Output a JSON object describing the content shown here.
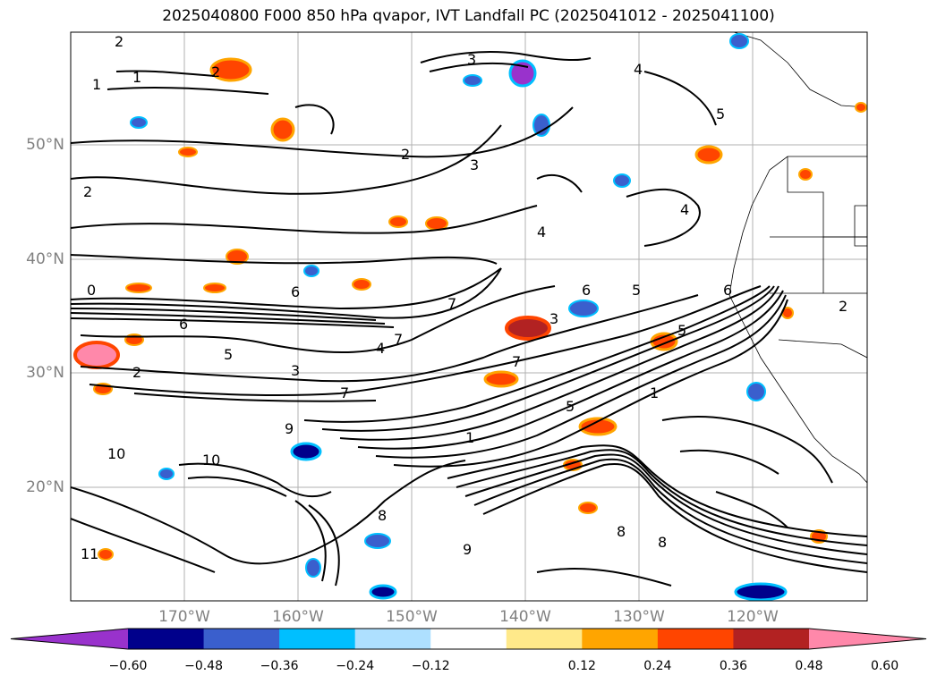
{
  "title": "2025040800 F000 850 hPa qvapor, IVT Landfall PC (2025041012 - 2025041100)",
  "map": {
    "lat_labels": [
      "50°N",
      "40°N",
      "30°N",
      "20°N"
    ],
    "lon_labels": [
      "170°W",
      "160°W",
      "150°W",
      "140°W",
      "130°W",
      "120°W"
    ],
    "extent": {
      "lon": [
        -180,
        -110
      ],
      "lat": [
        10,
        60
      ]
    },
    "grid": true,
    "contour_labels": [
      "2",
      "1",
      "1",
      "2",
      "3",
      "2",
      "3",
      "4",
      "2",
      "4",
      "5",
      "0",
      "6",
      "6",
      "5",
      "6",
      "4",
      "5",
      "3",
      "2",
      "7",
      "1",
      "3",
      "5",
      "7",
      "1",
      "7",
      "9",
      "10",
      "10",
      "8",
      "8",
      "8",
      "9",
      "11",
      "2",
      "4",
      "5",
      "6",
      "7"
    ]
  },
  "colorbar": {
    "ticks": [
      "−0.60",
      "−0.48",
      "−0.36",
      "−0.24",
      "−0.12",
      "0.12",
      "0.24",
      "0.36",
      "0.48",
      "0.60"
    ],
    "colors": [
      "#9932cc",
      "#00008b",
      "#3a5fcd",
      "#00bfff",
      "#aee0ff",
      "#ffffff",
      "#ffe98a",
      "#ffa500",
      "#ff4500",
      "#b22222",
      "#ff88aa"
    ],
    "extend": "both"
  }
}
